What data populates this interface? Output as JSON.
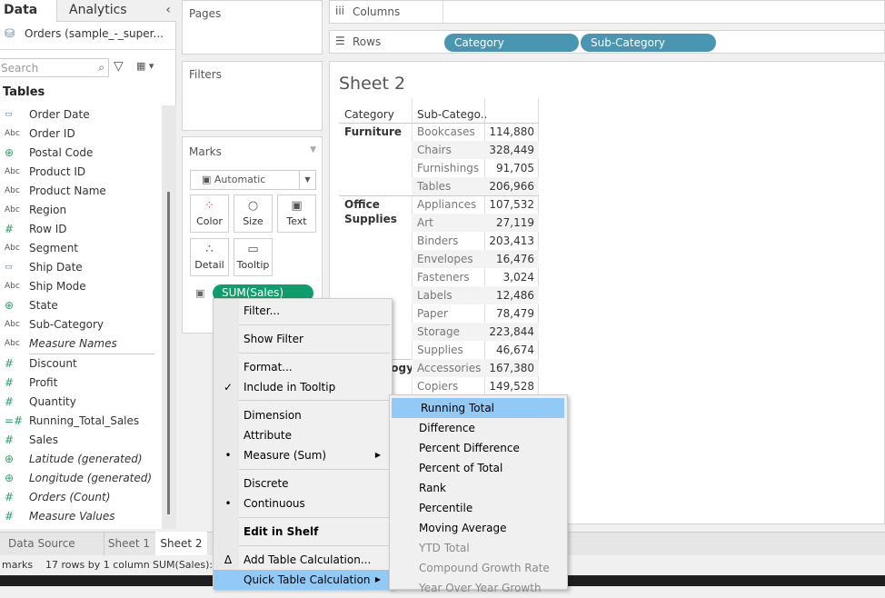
{
  "left_panel": {
    "tabs": [
      "Data",
      "Analytics"
    ],
    "datasource": "Orders (sample_-_super...",
    "search_placeholder": "Search",
    "tables_heading": "Tables",
    "dimensions": [
      {
        "icon": "calendar-icon",
        "glyph": "▭",
        "label": "Order Date"
      },
      {
        "icon": "abc-icon",
        "glyph": "Abc",
        "label": "Order ID"
      },
      {
        "icon": "globe-icon",
        "glyph": "⊕",
        "label": "Postal Code"
      },
      {
        "icon": "abc-icon",
        "glyph": "Abc",
        "label": "Product ID"
      },
      {
        "icon": "abc-icon",
        "glyph": "Abc",
        "label": "Product Name"
      },
      {
        "icon": "abc-icon",
        "glyph": "Abc",
        "label": "Region"
      },
      {
        "icon": "number-icon",
        "glyph": "#",
        "label": "Row ID"
      },
      {
        "icon": "abc-icon",
        "glyph": "Abc",
        "label": "Segment"
      },
      {
        "icon": "calendar-icon",
        "glyph": "▭",
        "label": "Ship Date"
      },
      {
        "icon": "abc-icon",
        "glyph": "Abc",
        "label": "Ship Mode"
      },
      {
        "icon": "globe-icon",
        "glyph": "⊕",
        "label": "State"
      },
      {
        "icon": "abc-icon",
        "glyph": "Abc",
        "label": "Sub-Category"
      },
      {
        "icon": "abc-icon",
        "glyph": "Abc",
        "label": "Measure Names",
        "italic": true
      }
    ],
    "measures": [
      {
        "icon": "number-icon",
        "glyph": "#",
        "label": "Discount"
      },
      {
        "icon": "number-icon",
        "glyph": "#",
        "label": "Profit"
      },
      {
        "icon": "number-icon",
        "glyph": "#",
        "label": "Quantity"
      },
      {
        "icon": "calc-number-icon",
        "glyph": "=#",
        "label": "Running_Total_Sales"
      },
      {
        "icon": "number-icon",
        "glyph": "#",
        "label": "Sales"
      },
      {
        "icon": "globe-icon",
        "glyph": "⊕",
        "label": "Latitude (generated)",
        "italic": true
      },
      {
        "icon": "globe-icon",
        "glyph": "⊕",
        "label": "Longitude (generated)",
        "italic": true
      },
      {
        "icon": "number-icon",
        "glyph": "#",
        "label": "Orders (Count)",
        "italic": true
      },
      {
        "icon": "number-icon",
        "glyph": "#",
        "label": "Measure Values",
        "italic": true
      }
    ]
  },
  "cards": {
    "pages": "Pages",
    "filters": "Filters",
    "marks": "Marks",
    "mark_type": "Automatic",
    "buttons": [
      "Color",
      "Size",
      "Text",
      "Detail",
      "Tooltip"
    ],
    "pill": "SUM(Sales)"
  },
  "shelves": {
    "columns": "Columns",
    "rows": "Rows",
    "row_pills": [
      "Category",
      "Sub-Category"
    ]
  },
  "sheet": {
    "title": "Sheet 2",
    "headers": [
      "Category",
      "Sub-Catego.."
    ],
    "groups": [
      {
        "category": "Furniture",
        "rows": [
          [
            "Bookcases",
            "114,880"
          ],
          [
            "Chairs",
            "328,449"
          ],
          [
            "Furnishings",
            "91,705"
          ],
          [
            "Tables",
            "206,966"
          ]
        ]
      },
      {
        "category": "Office Supplies",
        "rows": [
          [
            "Appliances",
            "107,532"
          ],
          [
            "Art",
            "27,119"
          ],
          [
            "Binders",
            "203,413"
          ],
          [
            "Envelopes",
            "16,476"
          ],
          [
            "Fasteners",
            "3,024"
          ],
          [
            "Labels",
            "12,486"
          ],
          [
            "Paper",
            "78,479"
          ],
          [
            "Storage",
            "223,844"
          ],
          [
            "Supplies",
            "46,674"
          ]
        ]
      },
      {
        "category": "Technology",
        "rows": [
          [
            "Accessories",
            "167,380"
          ],
          [
            "Copiers",
            "149,528"
          ]
        ]
      }
    ]
  },
  "bottom": {
    "tabs": [
      "Data Source",
      "Sheet 1",
      "Sheet 2"
    ],
    "status": [
      "marks",
      "17 rows by 1 column",
      "SUM(Sales):"
    ]
  },
  "context_menu": {
    "items": [
      "Filter...",
      "Show Filter",
      "Format...",
      "Include in Tooltip",
      "Dimension",
      "Attribute",
      "Measure (Sum)",
      "Discrete",
      "Continuous",
      "Edit in Shelf",
      "Add Table Calculation...",
      "Quick Table Calculation"
    ]
  },
  "submenu": {
    "items": [
      "Running Total",
      "Difference",
      "Percent Difference",
      "Percent of Total",
      "Rank",
      "Percentile",
      "Moving Average",
      "YTD Total",
      "Compound Growth Rate",
      "Year Over Year Growth"
    ]
  },
  "colors": {
    "pill_dimension": "#4996b2",
    "pill_measure": "#0f9d6b",
    "menu_highlight": "#91c9f7"
  }
}
